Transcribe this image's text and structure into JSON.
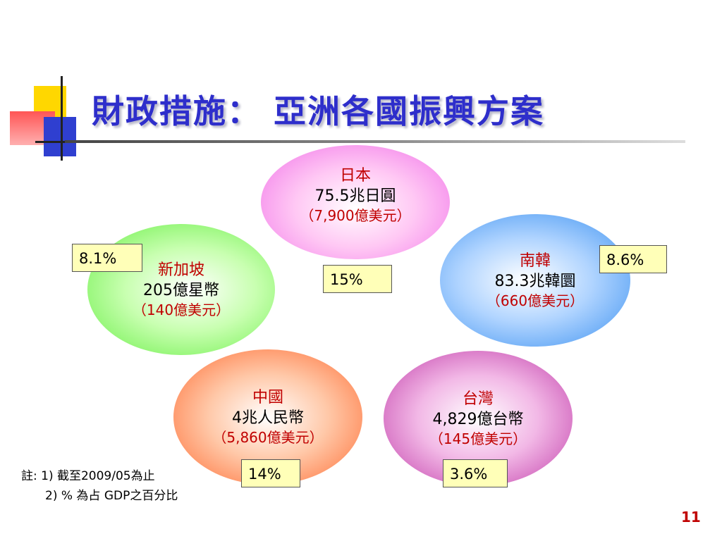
{
  "title": "財政措施： 亞洲各國振興方案",
  "countries": {
    "japan": {
      "name": "日本",
      "amount": "75.5兆日圓",
      "usd": "（7,900億美元）",
      "gdp_pct": "15%"
    },
    "singapore": {
      "name": "新加坡",
      "amount": "205億星幣",
      "usd": "（140億美元）",
      "gdp_pct": "8.1%"
    },
    "korea": {
      "name": "南韓",
      "amount": "83.3兆韓圜",
      "usd": "（660億美元）",
      "gdp_pct": "8.6%"
    },
    "china": {
      "name": "中國",
      "amount": "4兆人民幣",
      "usd": "（5,860億美元）",
      "gdp_pct": "14%"
    },
    "taiwan": {
      "name": "台灣",
      "amount": "4,829億台幣",
      "usd": "（145億美元）",
      "gdp_pct": "3.6%"
    }
  },
  "notes": {
    "line1": "註: 1) 截至2009/05為止",
    "line2": "2) % 為占 GDP之百分比"
  },
  "page_number": "11",
  "colors": {
    "title": "#2e2ecb",
    "country_name": "#c00000",
    "pct_box": "#ffffb8",
    "japan": "#f070e8",
    "singapore": "#66ee44",
    "korea": "#3a90f0",
    "china": "#ff6a30",
    "taiwan": "#c03aa8"
  }
}
